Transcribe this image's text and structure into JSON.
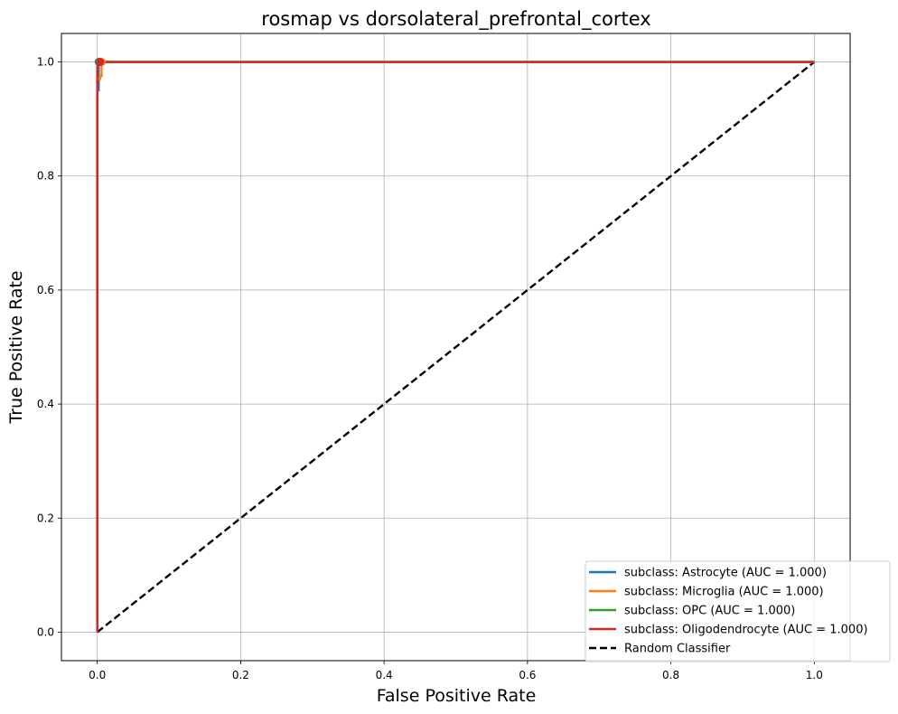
{
  "chart_data": {
    "type": "line",
    "title": "rosmap vs dorsolateral_prefrontal_cortex",
    "xlabel": "False Positive Rate",
    "ylabel": "True Positive Rate",
    "xlim": [
      -0.05,
      1.05
    ],
    "ylim": [
      -0.05,
      1.05
    ],
    "xticks": [
      0.0,
      0.2,
      0.4,
      0.6,
      0.8,
      1.0
    ],
    "yticks": [
      0.0,
      0.2,
      0.4,
      0.6,
      0.8,
      1.0
    ],
    "xtick_labels": [
      "0.0",
      "0.2",
      "0.4",
      "0.6",
      "0.8",
      "1.0"
    ],
    "ytick_labels": [
      "0.0",
      "0.2",
      "0.4",
      "0.6",
      "0.8",
      "1.0"
    ],
    "grid": true,
    "legend_position": "lower-right",
    "series": [
      {
        "name": "subclass: Astrocyte (AUC = 1.000)",
        "color": "#1f77b4",
        "dash": "solid",
        "x": [
          0.0,
          0.0,
          0.002,
          0.002,
          1.0
        ],
        "y": [
          0.0,
          0.95,
          0.95,
          1.0,
          1.0
        ],
        "marker_point": [
          0.002,
          1.0
        ]
      },
      {
        "name": "subclass: Microglia (AUC = 1.000)",
        "color": "#ff7f0e",
        "dash": "solid",
        "x": [
          0.0,
          0.0,
          0.004,
          0.004,
          0.006,
          0.006,
          1.0
        ],
        "y": [
          0.0,
          0.97,
          0.97,
          0.975,
          0.975,
          1.0,
          1.0
        ],
        "marker_point": [
          0.006,
          1.0
        ]
      },
      {
        "name": "subclass: OPC (AUC = 1.000)",
        "color": "#2ca02c",
        "dash": "solid",
        "x": [
          0.0,
          0.0,
          1.0
        ],
        "y": [
          0.0,
          1.0,
          1.0
        ],
        "marker_point": [
          0.003,
          1.0
        ]
      },
      {
        "name": "subclass: Oligodendrocyte (AUC = 1.000)",
        "color": "#d62728",
        "dash": "solid",
        "x": [
          0.0,
          0.0,
          1.0
        ],
        "y": [
          0.0,
          1.0,
          1.0
        ],
        "marker_point": [
          0.004,
          1.0
        ]
      },
      {
        "name": "Random Classifier",
        "color": "#000000",
        "dash": "dashed",
        "x": [
          0.0,
          1.0
        ],
        "y": [
          0.0,
          1.0
        ]
      }
    ]
  }
}
